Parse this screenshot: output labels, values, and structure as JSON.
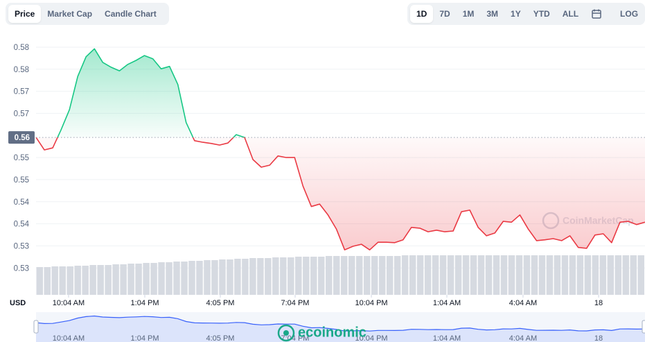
{
  "tabs": [
    "Price",
    "Market Cap",
    "Candle Chart"
  ],
  "ranges": [
    "1D",
    "7D",
    "1M",
    "3M",
    "1Y",
    "YTD",
    "ALL"
  ],
  "log_label": "LOG",
  "overlay_watermark": "ecoinomic",
  "chart_data": {
    "type": "line",
    "currency": "USD",
    "watermark": "CoinMarketCap",
    "up_color": "#16c784",
    "down_color": "#ea3943",
    "reference": {
      "value": 0.5595,
      "label": "0.56"
    },
    "ylim": [
      0.5203,
      0.5851
    ],
    "yticks": [
      {
        "value": 0.582,
        "label": "0.58"
      },
      {
        "value": 0.5765,
        "label": "0.58"
      },
      {
        "value": 0.571,
        "label": "0.57"
      },
      {
        "value": 0.5655,
        "label": "0.57"
      },
      {
        "value": 0.5545,
        "label": "0.55"
      },
      {
        "value": 0.549,
        "label": "0.55"
      },
      {
        "value": 0.5435,
        "label": "0.54"
      },
      {
        "value": 0.538,
        "label": "0.54"
      },
      {
        "value": 0.5325,
        "label": "0.53"
      },
      {
        "value": 0.527,
        "label": "0.53"
      }
    ],
    "grid": true,
    "xlim": [
      0,
      73
    ],
    "xticks": [
      {
        "value": 3.9,
        "label": "10:04 AM"
      },
      {
        "value": 13.04,
        "label": "1:04 PM"
      },
      {
        "value": 22.09,
        "label": "4:05 PM"
      },
      {
        "value": 31.06,
        "label": "7:04 PM"
      },
      {
        "value": 40.2,
        "label": "10:04 PM"
      },
      {
        "value": 49.25,
        "label": "1:04 AM"
      },
      {
        "value": 58.38,
        "label": "4:04 AM"
      },
      {
        "value": 67.44,
        "label": "18"
      }
    ],
    "series": [
      {
        "name": "Price",
        "values": [
          0.5595,
          0.5564,
          0.5569,
          0.5614,
          0.5664,
          0.5747,
          0.5796,
          0.5816,
          0.5782,
          0.577,
          0.5761,
          0.5777,
          0.5787,
          0.5799,
          0.5791,
          0.5766,
          0.5772,
          0.5727,
          0.5632,
          0.5587,
          0.5583,
          0.558,
          0.5576,
          0.5581,
          0.5602,
          0.5595,
          0.554,
          0.5521,
          0.5526,
          0.5549,
          0.5545,
          0.5545,
          0.5474,
          0.5423,
          0.5429,
          0.5402,
          0.5367,
          0.5315,
          0.5324,
          0.5329,
          0.5315,
          0.5334,
          0.5334,
          0.5333,
          0.534,
          0.5371,
          0.5369,
          0.536,
          0.5364,
          0.536,
          0.5362,
          0.541,
          0.5414,
          0.5371,
          0.535,
          0.5357,
          0.5386,
          0.5384,
          0.5402,
          0.5367,
          0.5338,
          0.534,
          0.5343,
          0.5338,
          0.535,
          0.5321,
          0.5319,
          0.5352,
          0.5355,
          0.5333,
          0.5384,
          0.5386,
          0.5378,
          0.5384
        ]
      }
    ],
    "volume": {
      "color": "#d6dae1",
      "values": [
        40,
        40,
        41,
        41,
        41,
        42,
        42,
        43,
        43,
        43,
        44,
        44,
        45,
        45,
        46,
        46,
        47,
        47,
        48,
        48,
        49,
        49,
        50,
        50,
        51,
        51,
        52,
        52,
        53,
        53,
        53,
        54,
        54,
        54,
        55,
        55,
        55,
        55,
        56,
        56,
        56,
        56,
        56,
        56,
        56,
        56,
        56,
        56,
        57,
        57,
        57,
        57,
        57,
        57,
        57,
        57,
        57,
        57,
        57,
        57,
        57,
        57,
        57,
        57,
        57,
        57,
        57,
        57,
        57,
        57,
        57,
        57,
        57,
        57,
        57,
        57,
        57,
        57,
        57,
        57
      ]
    },
    "navigator_color": "#3861fb"
  }
}
